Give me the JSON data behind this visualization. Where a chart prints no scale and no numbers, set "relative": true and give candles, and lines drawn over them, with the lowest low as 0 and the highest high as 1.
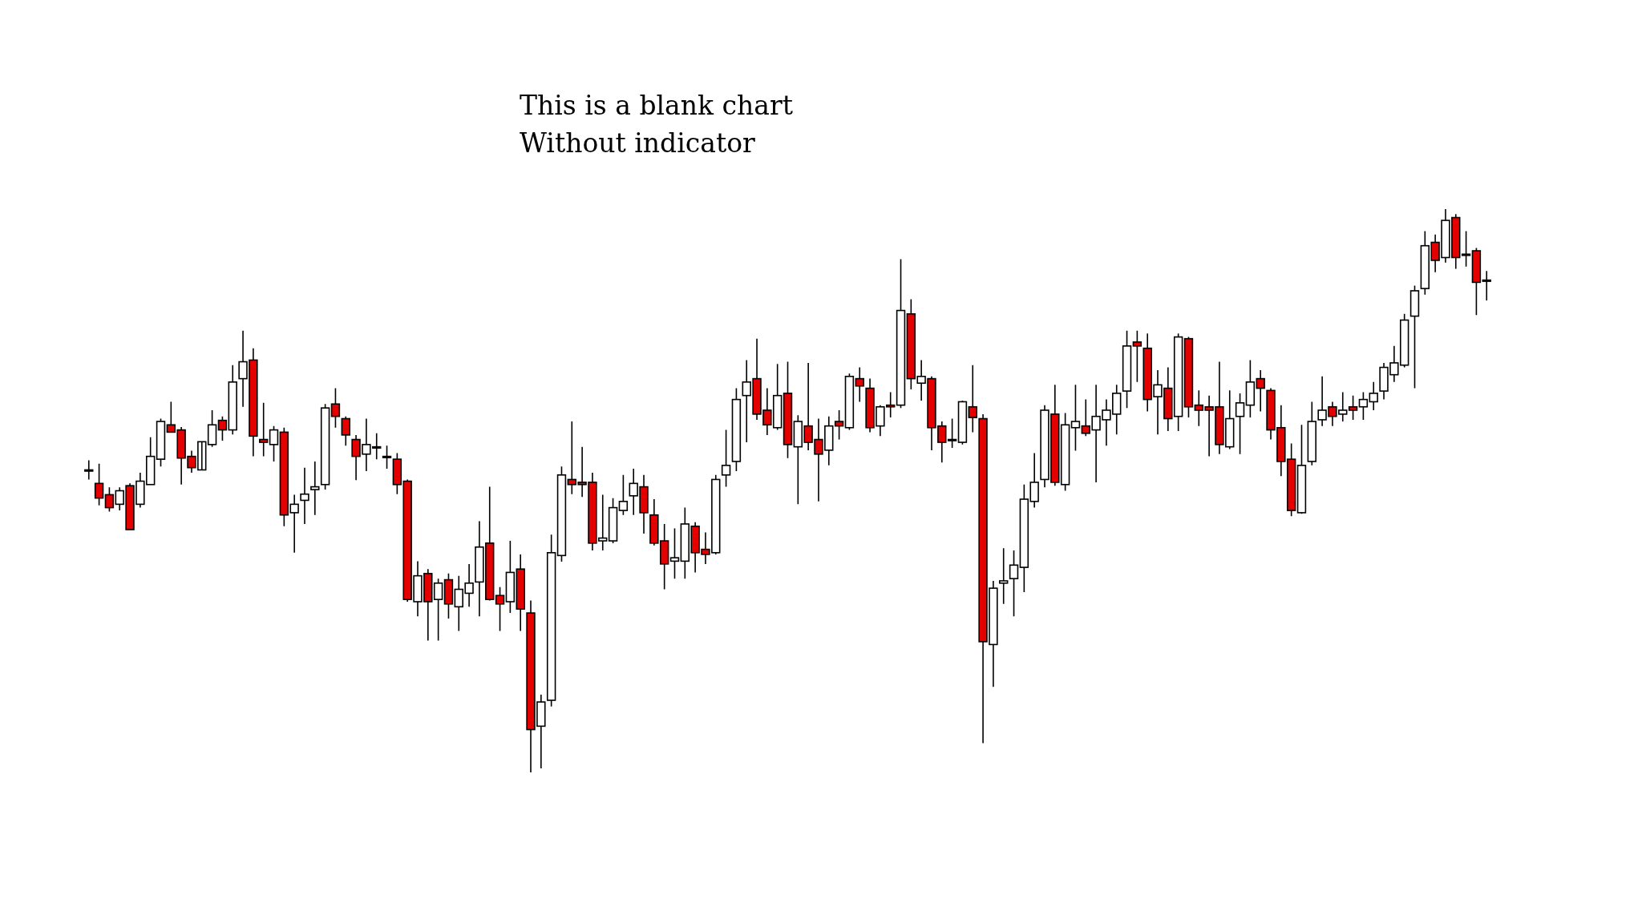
{
  "chart_data": {
    "type": "candlestick",
    "title": "This is a blank chart\nWithout indicator",
    "relative": true,
    "colors": [
      "#ffffff",
      "#e50000",
      "#e50000",
      "#ffffff",
      "#e50000",
      "#ffffff",
      "#ffffff",
      "#ffffff",
      "#e50000",
      "#e50000",
      "#e50000",
      "#ffffff",
      "#ffffff",
      "#e50000",
      "#ffffff",
      "#ffffff",
      "#e50000",
      "#e50000",
      "#ffffff",
      "#e50000",
      "#ffffff",
      "#ffffff",
      "#ffffff",
      "#ffffff",
      "#e50000",
      "#e50000",
      "#e50000",
      "#ffffff",
      "#e50000",
      "#e50000",
      "#e50000",
      "#e50000",
      "#ffffff",
      "#e50000",
      "#ffffff",
      "#e50000",
      "#ffffff",
      "#ffffff",
      "#ffffff",
      "#e50000",
      "#e50000",
      "#ffffff",
      "#e50000",
      "#e50000",
      "#ffffff",
      "#ffffff",
      "#ffffff",
      "#e50000",
      "#e50000",
      "#e50000",
      "#ffffff",
      "#ffffff",
      "#ffffff",
      "#ffffff",
      "#e50000",
      "#e50000",
      "#e50000",
      "#ffffff",
      "#ffffff",
      "#e50000",
      "#e50000",
      "#ffffff",
      "#ffffff",
      "#ffffff",
      "#ffffff",
      "#e50000",
      "#e50000",
      "#ffffff",
      "#e50000",
      "#ffffff",
      "#e50000",
      "#e50000",
      "#ffffff",
      "#e50000",
      "#ffffff",
      "#e50000",
      "#e50000",
      "#ffffff",
      "#e50000",
      "#ffffff",
      "#e50000",
      "#ffffff",
      "#e50000",
      "#e50000",
      "#e50000",
      "#ffffff",
      "#e50000",
      "#e50000",
      "#ffffff",
      "#ffffff",
      "#ffffff",
      "#ffffff",
      "#ffffff",
      "#ffffff",
      "#e50000",
      "#ffffff",
      "#ffffff",
      "#e50000",
      "#ffffff",
      "#ffffff",
      "#ffffff",
      "#ffffff",
      "#e50000",
      "#e50000",
      "#ffffff",
      "#e50000",
      "#ffffff",
      "#e50000",
      "#e50000",
      "#e50000",
      "#e50000",
      "#ffffff",
      "#ffffff",
      "#ffffff",
      "#e50000",
      "#e50000",
      "#e50000",
      "#e50000",
      "#ffffff",
      "#ffffff",
      "#ffffff",
      "#e50000",
      "#ffffff",
      "#e50000",
      "#ffffff",
      "#ffffff",
      "#ffffff",
      "#ffffff",
      "#ffffff",
      "#ffffff",
      "#ffffff",
      "#e50000",
      "#ffffff",
      "#e50000",
      "#e50000",
      "#e50000",
      "#e50000"
    ],
    "categories": [
      null,
      null,
      null,
      null,
      null,
      null,
      null,
      null,
      null,
      null,
      null,
      null,
      null,
      null,
      null,
      null,
      null,
      null,
      null,
      null,
      null,
      null,
      null,
      null,
      null,
      null,
      null,
      null,
      null,
      null,
      null,
      null,
      null,
      null,
      null,
      null,
      null,
      null,
      null,
      null,
      null,
      null,
      null,
      null,
      null,
      null,
      null,
      null,
      null,
      null,
      null,
      null,
      null,
      null,
      null,
      null,
      null,
      null,
      null,
      null,
      null,
      null,
      null,
      null,
      null,
      null,
      null,
      null,
      null,
      null,
      null,
      null,
      null,
      null,
      null,
      null,
      null,
      null,
      null,
      null,
      null,
      null,
      null,
      null,
      null,
      null,
      null,
      null,
      null,
      null,
      null,
      null,
      null,
      null,
      null,
      null,
      null,
      null,
      null,
      null,
      null,
      null,
      null,
      null,
      null,
      null,
      null,
      null,
      null,
      null,
      null,
      null,
      null,
      null,
      null,
      null,
      null,
      null,
      null,
      null,
      null,
      null,
      null,
      null,
      null,
      null,
      null,
      null,
      null,
      null,
      null,
      null,
      null,
      null,
      null,
      null,
      null
    ],
    "ohlc": [
      [
        0.535,
        0.554,
        0.52,
        0.537
      ],
      [
        0.513,
        0.548,
        0.474,
        0.487
      ],
      [
        0.493,
        0.506,
        0.463,
        0.47
      ],
      [
        0.476,
        0.506,
        0.465,
        0.5
      ],
      [
        0.509,
        0.513,
        0.431,
        0.431
      ],
      [
        0.476,
        0.532,
        0.47,
        0.517
      ],
      [
        0.511,
        0.595,
        0.511,
        0.561
      ],
      [
        0.556,
        0.628,
        0.543,
        0.623
      ],
      [
        0.617,
        0.658,
        0.604,
        0.604
      ],
      [
        0.608,
        0.613,
        0.511,
        0.558
      ],
      [
        0.561,
        0.571,
        0.532,
        0.541
      ],
      [
        0.537,
        0.587,
        0.537,
        0.587
      ],
      [
        0.582,
        0.643,
        0.578,
        0.617
      ],
      [
        0.625,
        0.632,
        0.589,
        0.608
      ],
      [
        0.608,
        0.723,
        0.6,
        0.693
      ],
      [
        0.699,
        0.784,
        0.649,
        0.729
      ],
      [
        0.732,
        0.753,
        0.561,
        0.597
      ],
      [
        0.591,
        0.656,
        0.561,
        0.586
      ],
      [
        0.582,
        0.615,
        0.552,
        0.608
      ],
      [
        0.604,
        0.612,
        0.437,
        0.457
      ],
      [
        0.461,
        0.493,
        0.39,
        0.476
      ],
      [
        0.483,
        0.541,
        0.441,
        0.494
      ],
      [
        0.502,
        0.552,
        0.457,
        0.507
      ],
      [
        0.511,
        0.654,
        0.502,
        0.647
      ],
      [
        0.654,
        0.682,
        0.612,
        0.632
      ],
      [
        0.628,
        0.632,
        0.58,
        0.599
      ],
      [
        0.591,
        0.599,
        0.519,
        0.561
      ],
      [
        0.565,
        0.628,
        0.535,
        0.582
      ],
      [
        0.578,
        0.602,
        0.556,
        0.576
      ],
      [
        0.561,
        0.58,
        0.539,
        0.559
      ],
      [
        0.556,
        0.567,
        0.494,
        0.511
      ],
      [
        0.517,
        0.52,
        0.303,
        0.307
      ],
      [
        0.303,
        0.375,
        0.277,
        0.349
      ],
      [
        0.353,
        0.361,
        0.234,
        0.303
      ],
      [
        0.307,
        0.344,
        0.234,
        0.336
      ],
      [
        0.342,
        0.353,
        0.273,
        0.299
      ],
      [
        0.294,
        0.349,
        0.251,
        0.325
      ],
      [
        0.318,
        0.37,
        0.294,
        0.336
      ],
      [
        0.338,
        0.446,
        0.277,
        0.4
      ],
      [
        0.407,
        0.507,
        0.305,
        0.307
      ],
      [
        0.314,
        0.329,
        0.251,
        0.299
      ],
      [
        0.303,
        0.411,
        0.283,
        0.355
      ],
      [
        0.361,
        0.387,
        0.251,
        0.29
      ],
      [
        0.283,
        0.305,
        0,
        0.076
      ],
      [
        0.082,
        0.138,
        0.007,
        0.125
      ],
      [
        0.128,
        0.422,
        0.117,
        0.39
      ],
      [
        0.385,
        0.543,
        0.374,
        0.528
      ],
      [
        0.52,
        0.623,
        0.494,
        0.511
      ],
      [
        0.515,
        0.578,
        0.489,
        0.511
      ],
      [
        0.515,
        0.532,
        0.394,
        0.407
      ],
      [
        0.411,
        0.493,
        0.394,
        0.416
      ],
      [
        0.411,
        0.487,
        0.407,
        0.47
      ],
      [
        0.465,
        0.528,
        0.457,
        0.481
      ],
      [
        0.491,
        0.539,
        0.457,
        0.513
      ],
      [
        0.507,
        0.528,
        0.424,
        0.461
      ],
      [
        0.457,
        0.485,
        0.403,
        0.407
      ],
      [
        0.411,
        0.441,
        0.325,
        0.37
      ],
      [
        0.375,
        0.433,
        0.344,
        0.381
      ],
      [
        0.375,
        0.47,
        0.344,
        0.441
      ],
      [
        0.437,
        0.444,
        0.355,
        0.39
      ],
      [
        0.396,
        0.426,
        0.37,
        0.387
      ],
      [
        0.39,
        0.528,
        0.387,
        0.52
      ],
      [
        0.528,
        0.608,
        0.507,
        0.545
      ],
      [
        0.552,
        0.682,
        0.535,
        0.662
      ],
      [
        0.669,
        0.732,
        0.586,
        0.693
      ],
      [
        0.699,
        0.77,
        0.626,
        0.636
      ],
      [
        0.643,
        0.682,
        0.599,
        0.617
      ],
      [
        0.612,
        0.725,
        0.608,
        0.669
      ],
      [
        0.673,
        0.729,
        0.558,
        0.582
      ],
      [
        0.578,
        0.634,
        0.476,
        0.623
      ],
      [
        0.615,
        0.727,
        0.572,
        0.586
      ],
      [
        0.591,
        0.628,
        0.481,
        0.565
      ],
      [
        0.572,
        0.632,
        0.545,
        0.615
      ],
      [
        0.623,
        0.643,
        0.591,
        0.615
      ],
      [
        0.612,
        0.708,
        0.608,
        0.703
      ],
      [
        0.699,
        0.719,
        0.658,
        0.686
      ],
      [
        0.682,
        0.699,
        0.604,
        0.612
      ],
      [
        0.615,
        0.652,
        0.597,
        0.649
      ],
      [
        0.652,
        0.675,
        0.63,
        0.649
      ],
      [
        0.652,
        0.911,
        0.647,
        0.82
      ],
      [
        0.814,
        0.84,
        0.68,
        0.699
      ],
      [
        0.691,
        0.732,
        0.66,
        0.703
      ],
      [
        0.699,
        0.703,
        0.572,
        0.612
      ],
      [
        0.615,
        0.623,
        0.55,
        0.586
      ],
      [
        0.591,
        0.628,
        0.576,
        0.589
      ],
      [
        0.586,
        0.66,
        0.582,
        0.658
      ],
      [
        0.649,
        0.723,
        0.604,
        0.63
      ],
      [
        0.628,
        0.636,
        0.052,
        0.232
      ],
      [
        0.227,
        0.34,
        0.152,
        0.327
      ],
      [
        0.336,
        0.398,
        0.299,
        0.34
      ],
      [
        0.344,
        0.394,
        0.277,
        0.368
      ],
      [
        0.364,
        0.511,
        0.32,
        0.485
      ],
      [
        0.481,
        0.567,
        0.47,
        0.515
      ],
      [
        0.52,
        0.652,
        0.506,
        0.643
      ],
      [
        0.636,
        0.688,
        0.509,
        0.515
      ],
      [
        0.511,
        0.638,
        0.5,
        0.617
      ],
      [
        0.612,
        0.688,
        0.571,
        0.623
      ],
      [
        0.615,
        0.662,
        0.597,
        0.602
      ],
      [
        0.608,
        0.688,
        0.515,
        0.632
      ],
      [
        0.626,
        0.662,
        0.58,
        0.643
      ],
      [
        0.636,
        0.688,
        0.6,
        0.673
      ],
      [
        0.677,
        0.784,
        0.647,
        0.757
      ],
      [
        0.764,
        0.784,
        0.693,
        0.757
      ],
      [
        0.753,
        0.779,
        0.641,
        0.662
      ],
      [
        0.667,
        0.714,
        0.6,
        0.688
      ],
      [
        0.682,
        0.719,
        0.606,
        0.628
      ],
      [
        0.632,
        0.779,
        0.606,
        0.773
      ],
      [
        0.77,
        0.773,
        0.63,
        0.649
      ],
      [
        0.652,
        0.678,
        0.615,
        0.643
      ],
      [
        0.649,
        0.669,
        0.561,
        0.643
      ],
      [
        0.649,
        0.729,
        0.565,
        0.582
      ],
      [
        0.578,
        0.678,
        0.574,
        0.628
      ],
      [
        0.632,
        0.673,
        0.565,
        0.656
      ],
      [
        0.652,
        0.732,
        0.63,
        0.693
      ],
      [
        0.699,
        0.714,
        0.641,
        0.682
      ],
      [
        0.678,
        0.682,
        0.591,
        0.608
      ],
      [
        0.612,
        0.652,
        0.526,
        0.552
      ],
      [
        0.556,
        0.584,
        0.455,
        0.465
      ],
      [
        0.461,
        0.617,
        0.459,
        0.545
      ],
      [
        0.552,
        0.658,
        0.545,
        0.623
      ],
      [
        0.626,
        0.703,
        0.615,
        0.643
      ],
      [
        0.649,
        0.658,
        0.615,
        0.632
      ],
      [
        0.636,
        0.675,
        0.623,
        0.643
      ],
      [
        0.649,
        0.669,
        0.626,
        0.643
      ],
      [
        0.649,
        0.675,
        0.626,
        0.662
      ],
      [
        0.658,
        0.693,
        0.643,
        0.673
      ],
      [
        0.677,
        0.727,
        0.662,
        0.719
      ],
      [
        0.706,
        0.757,
        0.693,
        0.727
      ],
      [
        0.723,
        0.814,
        0.719,
        0.803
      ],
      [
        0.81,
        0.864,
        0.682,
        0.855
      ],
      [
        0.859,
        0.961,
        0.848,
        0.935
      ],
      [
        0.941,
        0.955,
        0.888,
        0.909
      ],
      [
        0.914,
        1,
        0.905,
        0.98
      ],
      [
        0.985,
        0.991,
        0.894,
        0.914
      ],
      [
        0.92,
        0.961,
        0.898,
        0.918
      ],
      [
        0.926,
        0.931,
        0.812,
        0.87
      ],
      [
        0.874,
        0.89,
        0.838,
        0.872
      ]
    ]
  }
}
